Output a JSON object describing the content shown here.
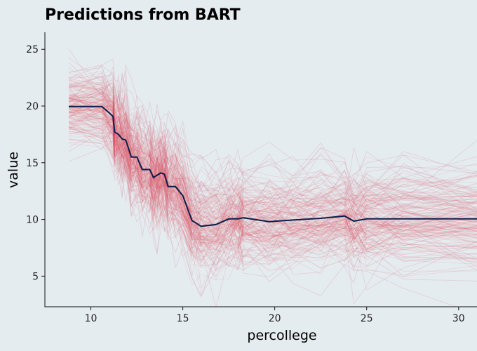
{
  "chart_data": {
    "type": "line",
    "title": "Predictions from BART",
    "xlabel": "percollege",
    "ylabel": "value",
    "xlim": [
      7.5,
      31
    ],
    "ylim": [
      2.3,
      26.5
    ],
    "xticks": [
      10,
      15,
      20,
      25,
      30
    ],
    "yticks": [
      5,
      10,
      15,
      20,
      25
    ],
    "grid": false,
    "legend": "none",
    "series": [
      {
        "role": "mean",
        "color": "#0b1d4a",
        "x": [
          8.8,
          10.6,
          11.2,
          11.3,
          11.5,
          11.7,
          11.9,
          12.2,
          12.5,
          12.8,
          13.2,
          13.4,
          13.6,
          13.8,
          14.0,
          14.2,
          14.6,
          15.0,
          15.5,
          16.0,
          16.8,
          17.5,
          18.0,
          18.3,
          19.7,
          21.0,
          22.5,
          23.8,
          24.3,
          25.0,
          27.0,
          31.0
        ],
        "y": [
          19.95,
          19.95,
          19.1,
          17.7,
          17.5,
          17.1,
          17.0,
          15.5,
          15.5,
          14.4,
          14.4,
          13.7,
          13.9,
          14.1,
          14.0,
          12.9,
          12.9,
          12.1,
          9.9,
          9.4,
          9.55,
          10.05,
          10.05,
          10.15,
          9.8,
          9.95,
          10.1,
          10.3,
          9.85,
          10.05,
          10.05,
          10.05
        ]
      }
    ],
    "band_color": "#e0455e",
    "faint_color": "#d7aab8",
    "band_spread": [
      [
        8.8,
        1.8
      ],
      [
        10.6,
        1.8
      ],
      [
        11.3,
        2.0
      ],
      [
        12.0,
        2.2
      ],
      [
        13.0,
        2.3
      ],
      [
        14.0,
        2.4
      ],
      [
        15.0,
        2.5
      ],
      [
        16.0,
        2.5
      ],
      [
        17.5,
        2.4
      ],
      [
        20.0,
        2.4
      ],
      [
        23.8,
        2.3
      ],
      [
        25.0,
        2.6
      ],
      [
        31.0,
        2.7
      ]
    ]
  }
}
